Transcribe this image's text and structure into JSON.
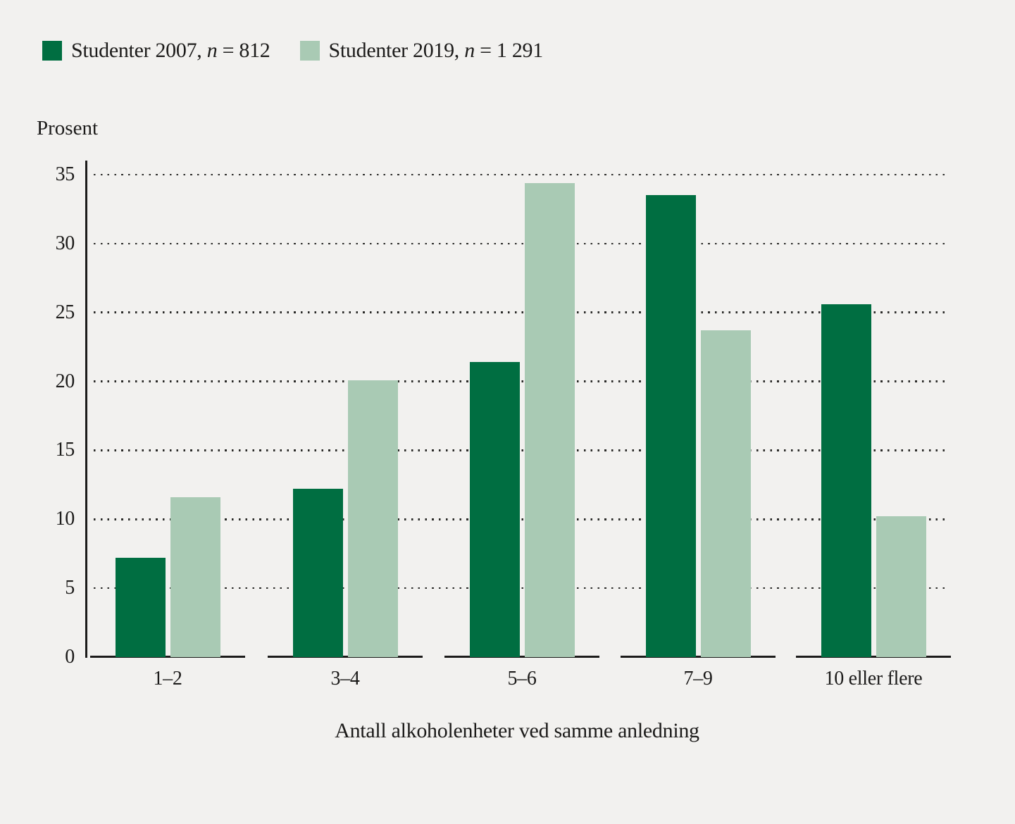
{
  "colors": {
    "background": "#f2f1ef",
    "series_2007": "#006e41",
    "series_2019": "#a9cab4",
    "axis": "#1c1b1a",
    "text": "#1c1b1a"
  },
  "legend": {
    "items": [
      {
        "prefix": "Studenter 2007, ",
        "n": "n",
        "suffix": " = 812",
        "color": "#006e41"
      },
      {
        "prefix": "Studenter 2019, ",
        "n": "n",
        "suffix": " = 1 291",
        "color": "#a9cab4"
      }
    ]
  },
  "chart_data": {
    "type": "bar",
    "title": "",
    "ylabel": "Prosent",
    "xlabel": "Antall alkoholenheter ved samme anledning",
    "categories": [
      "1–2",
      "3–4",
      "5–6",
      "7–9",
      "10 eller flere"
    ],
    "series": [
      {
        "name": "Studenter 2007, n = 812",
        "color": "#006e41",
        "values": [
          7.2,
          12.2,
          21.4,
          33.5,
          25.6
        ]
      },
      {
        "name": "Studenter 2019, n = 1 291",
        "color": "#a9cab4",
        "values": [
          11.6,
          20.1,
          34.4,
          23.7,
          10.2
        ]
      }
    ],
    "y_ticks": [
      0,
      5,
      10,
      15,
      20,
      25,
      30,
      35
    ],
    "ylim": [
      0,
      35
    ],
    "grid": "horizontal-dotted",
    "legend_position": "top-left",
    "baseline_style": "separate segment under each category group"
  }
}
